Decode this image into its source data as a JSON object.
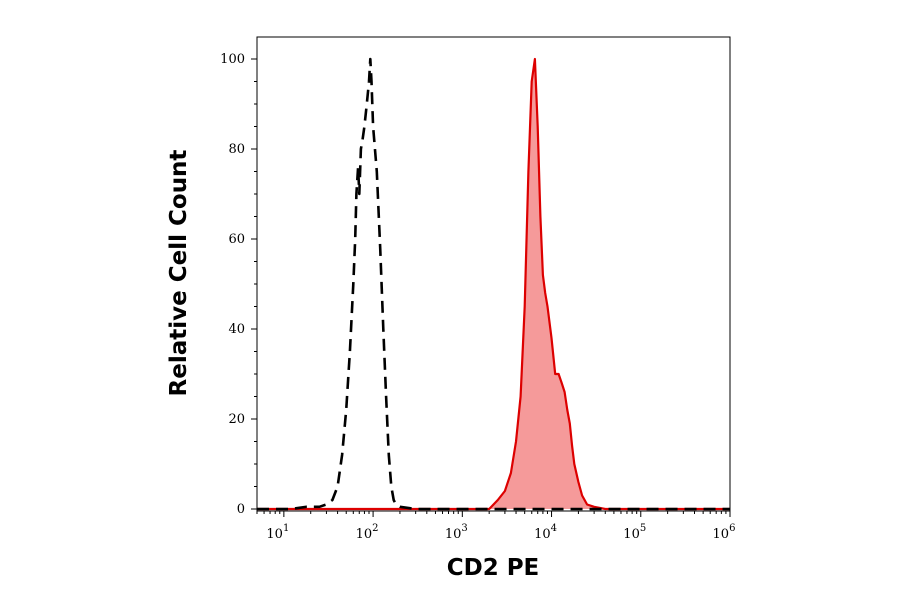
{
  "chart_data": {
    "type": "area",
    "title": "",
    "xlabel": "CD2 PE",
    "ylabel": "Relative Cell Count",
    "x_scale": "log",
    "xlim": [
      5,
      1000000
    ],
    "ylim": [
      0,
      105
    ],
    "grid": false,
    "legend": "none",
    "x_ticks": [
      {
        "value": 10,
        "base": "10",
        "exp": "1"
      },
      {
        "value": 100,
        "base": "10",
        "exp": "2"
      },
      {
        "value": 1000,
        "base": "10",
        "exp": "3"
      },
      {
        "value": 10000,
        "base": "10",
        "exp": "4"
      },
      {
        "value": 100000,
        "base": "10",
        "exp": "5"
      },
      {
        "value": 1000000,
        "base": "10",
        "exp": "6"
      }
    ],
    "y_ticks": [
      0,
      20,
      40,
      60,
      80,
      100
    ],
    "series": [
      {
        "style": "dashed",
        "color": "#000000",
        "fill": "none",
        "x": [
          5,
          12,
          18,
          25,
          30,
          35,
          40,
          45,
          50,
          55,
          60,
          63,
          65,
          68,
          70,
          73,
          76,
          80,
          85,
          90,
          93,
          96,
          100,
          110,
          120,
          130,
          140,
          150,
          160,
          170,
          180,
          200,
          300,
          1000000
        ],
        "y": [
          0,
          0,
          0.5,
          0.5,
          1,
          2,
          5,
          12,
          22,
          35,
          50,
          60,
          70,
          76,
          70,
          80,
          82,
          85,
          90,
          95,
          100,
          95,
          85,
          75,
          58,
          40,
          25,
          12,
          5,
          2,
          1,
          0.5,
          0,
          0
        ]
      },
      {
        "style": "solid",
        "color": "#dd0000",
        "fill": "#f59a9a",
        "x": [
          5,
          2000,
          2500,
          3000,
          3500,
          4000,
          4500,
          5000,
          5500,
          6000,
          6500,
          7000,
          7500,
          8000,
          8500,
          9000,
          10000,
          11000,
          12000,
          13000,
          14000,
          15000,
          16000,
          17000,
          18000,
          20000,
          22000,
          25000,
          30000,
          40000,
          1000000
        ],
        "y": [
          0,
          0,
          2,
          4,
          8,
          15,
          25,
          45,
          75,
          95,
          100,
          85,
          65,
          52,
          48,
          45,
          38,
          30,
          30,
          28,
          26,
          22,
          19,
          14,
          10,
          6,
          3,
          1,
          0.5,
          0,
          0
        ]
      }
    ]
  }
}
